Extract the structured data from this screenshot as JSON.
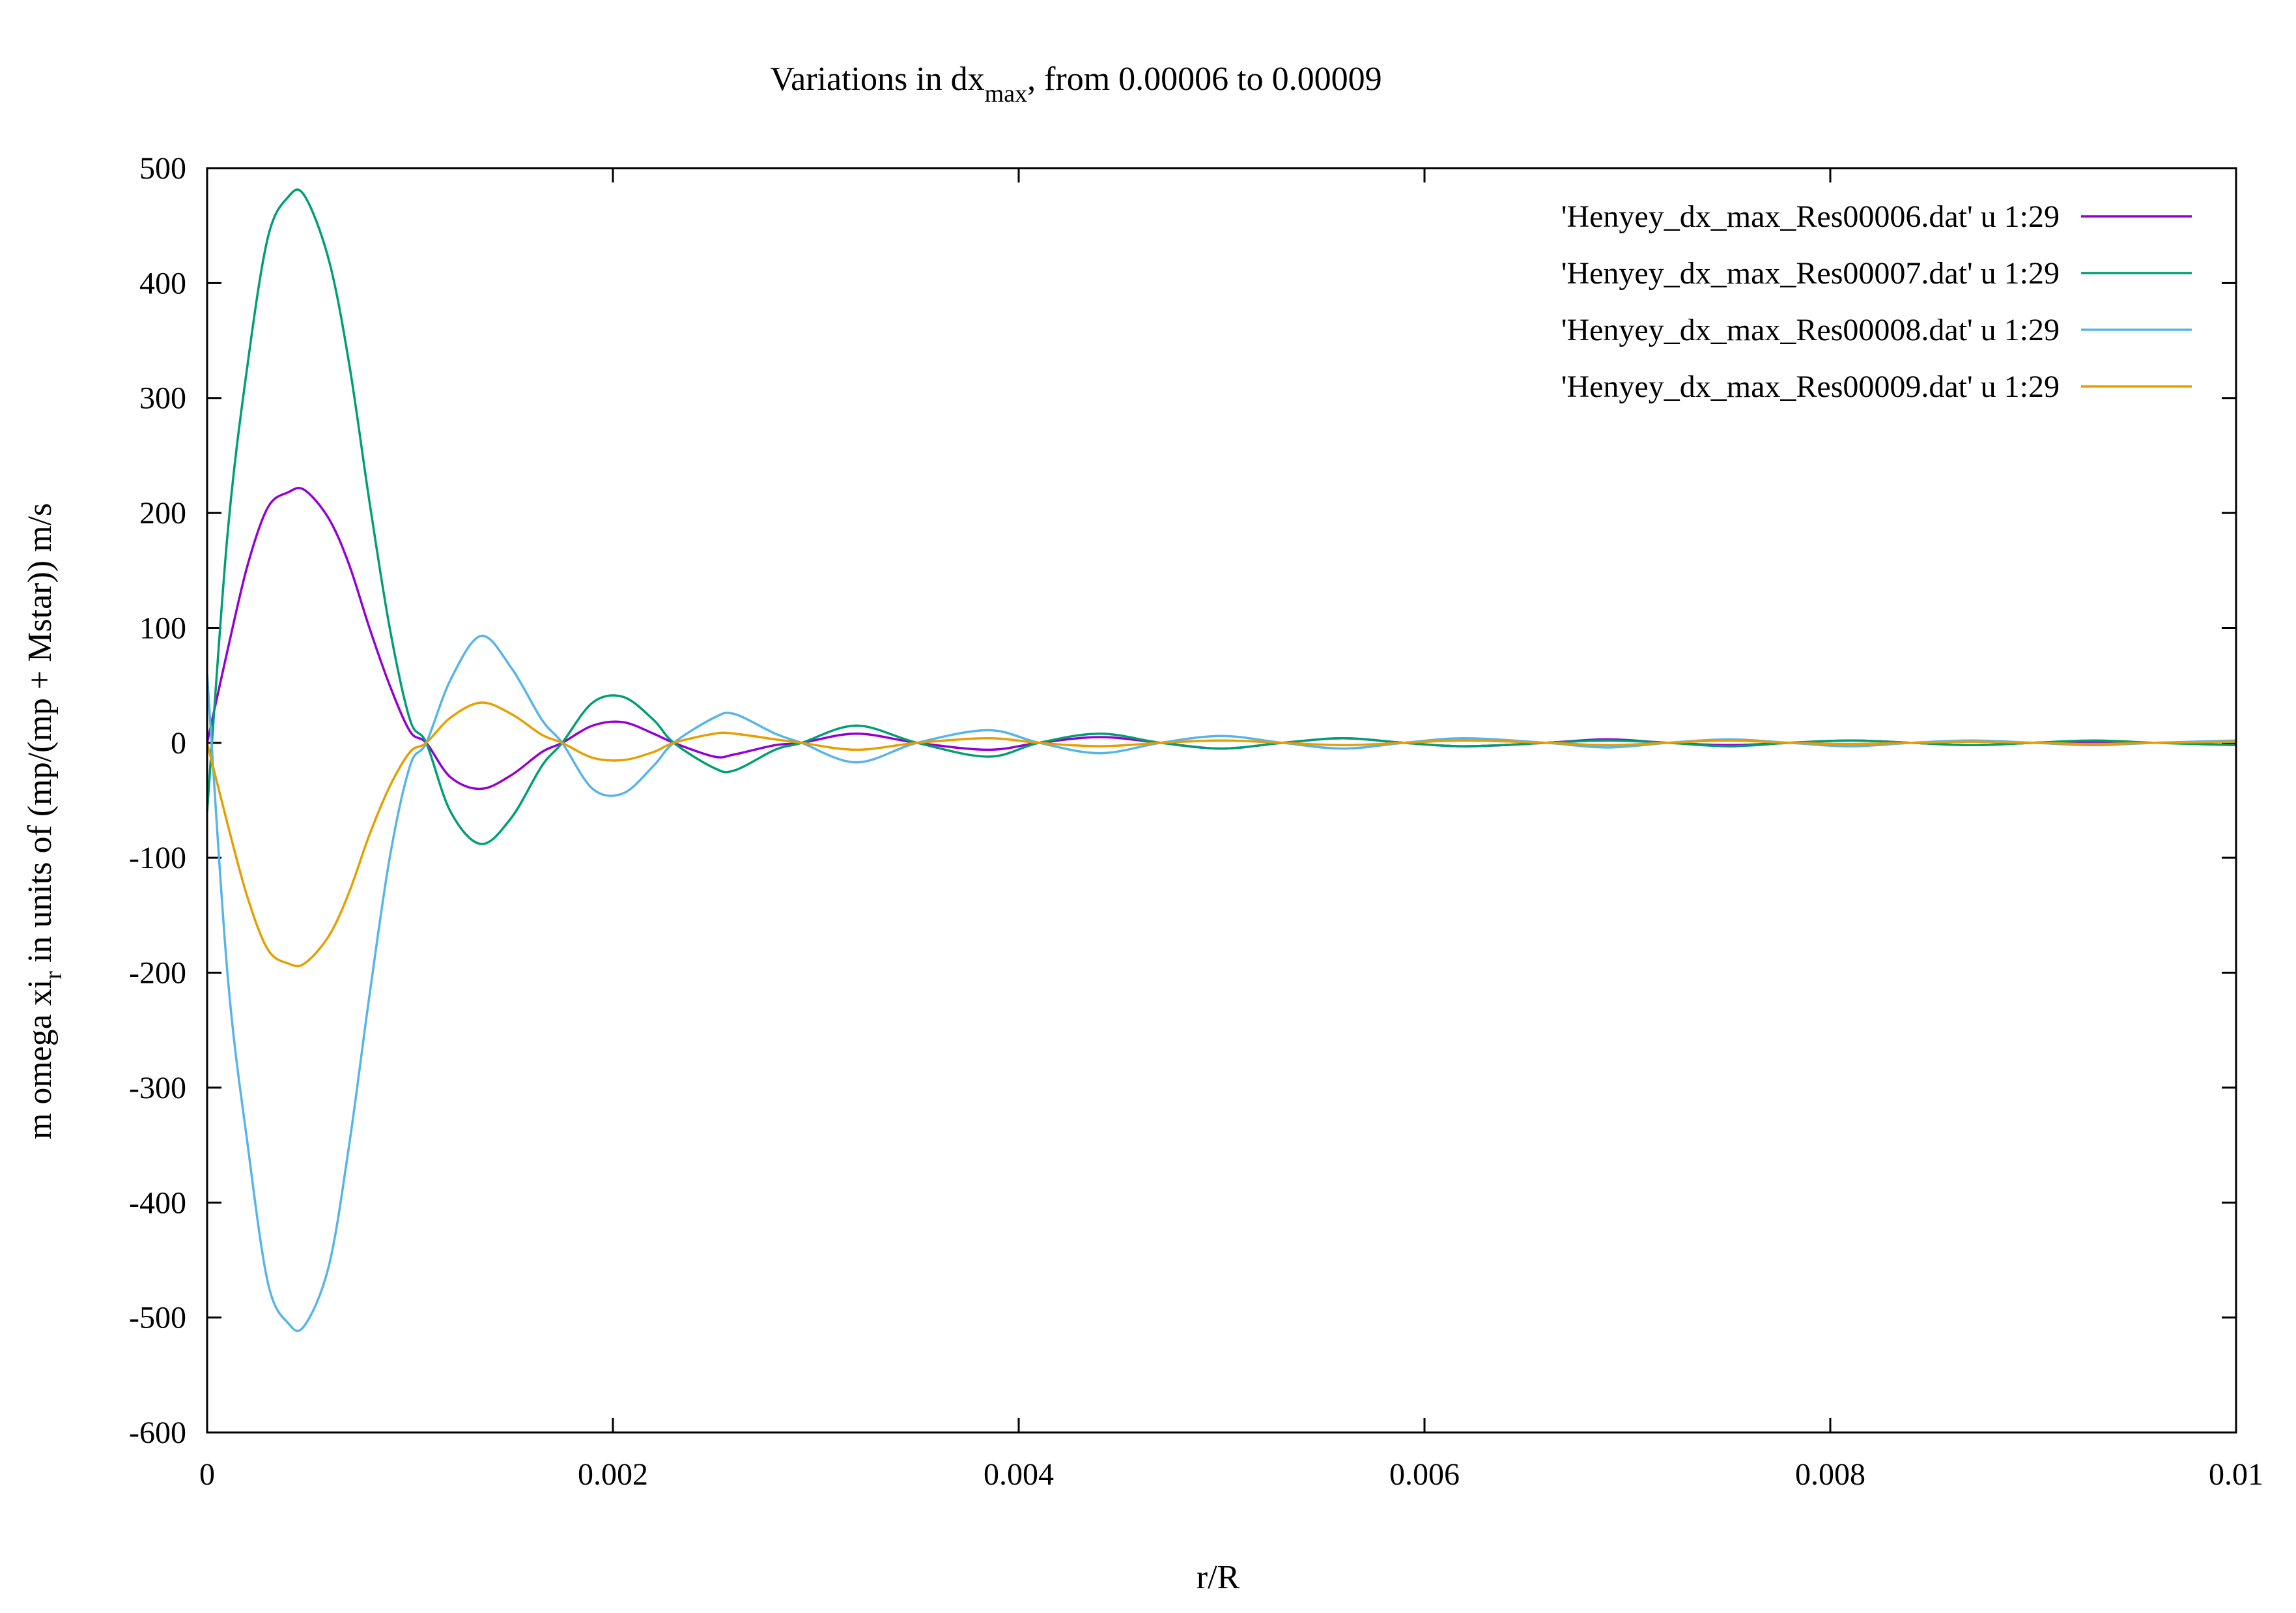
{
  "chart_data": {
    "type": "line",
    "title": {
      "prefix": "Variations in dx",
      "sub": "max",
      "suffix": ", from 0.00006 to 0.00009"
    },
    "xlabel": "r/R",
    "ylabel": {
      "prefix": "m omega xi",
      "sub": "r",
      "suffix": " in units of (mp/(mp + Mstar)) m/s"
    },
    "xlim": [
      0,
      0.01
    ],
    "ylim": [
      -600,
      500
    ],
    "x_ticks": [
      0,
      0.002,
      0.004,
      0.006,
      0.008,
      0.01
    ],
    "x_tick_labels": [
      "0",
      "0.002",
      "0.004",
      "0.006",
      "0.008",
      "0.01"
    ],
    "y_ticks": [
      -600,
      -500,
      -400,
      -300,
      -200,
      -100,
      0,
      100,
      200,
      300,
      400,
      500
    ],
    "y_tick_labels": [
      "-600",
      "-500",
      "-400",
      "-300",
      "-200",
      "-100",
      "0",
      "100",
      "200",
      "300",
      "400",
      "500"
    ],
    "grid": false,
    "legend_position": "top-right",
    "series": [
      {
        "name": "'Henyey_dx_max_Res00006.dat' u 1:29",
        "color": "#9400d3",
        "x": [
          0,
          0.0001,
          0.0002,
          0.0003,
          0.0004,
          0.00048,
          0.0006,
          0.0007,
          0.0008,
          0.0009,
          0.001,
          0.00108,
          0.0012,
          0.00135,
          0.0015,
          0.00165,
          0.00175,
          0.0019,
          0.00205,
          0.0022,
          0.0023,
          0.0025,
          0.0026,
          0.0028,
          0.00293,
          0.0032,
          0.0035,
          0.00385,
          0.0041,
          0.0044,
          0.0047,
          0.005,
          0.0053,
          0.0056,
          0.0059,
          0.0062,
          0.0066,
          0.0069,
          0.0072,
          0.0075,
          0.0078,
          0.0081,
          0.0084,
          0.0087,
          0.009,
          0.0093,
          0.0096,
          0.01
        ],
        "y": [
          0,
          80,
          155,
          205,
          218,
          220,
          195,
          155,
          100,
          50,
          10,
          0,
          -30,
          -40,
          -28,
          -8,
          0,
          15,
          18,
          8,
          0,
          -12,
          -10,
          -2,
          0,
          8,
          0,
          -6,
          0,
          5,
          0,
          -5,
          0,
          4,
          0,
          -3,
          0,
          3,
          0,
          -2,
          0,
          2,
          0,
          -2,
          0,
          1,
          0,
          1
        ]
      },
      {
        "name": "'Henyey_dx_max_Res00007.dat' u 1:29",
        "color": "#009e73",
        "x": [
          0,
          0.0001,
          0.0002,
          0.0003,
          0.0004,
          0.00048,
          0.0006,
          0.0007,
          0.0008,
          0.0009,
          0.001,
          0.00108,
          0.0012,
          0.00135,
          0.0015,
          0.00165,
          0.00175,
          0.0019,
          0.00205,
          0.0022,
          0.0023,
          0.0025,
          0.0026,
          0.0028,
          0.00293,
          0.0032,
          0.0035,
          0.00385,
          0.0041,
          0.0044,
          0.0047,
          0.005,
          0.0053,
          0.0056,
          0.0059,
          0.0062,
          0.0066,
          0.0069,
          0.0072,
          0.0075,
          0.0078,
          0.0081,
          0.0084,
          0.0087,
          0.009,
          0.0093,
          0.0096,
          0.01
        ],
        "y": [
          -60,
          180,
          330,
          440,
          475,
          476,
          420,
          330,
          210,
          100,
          20,
          0,
          -60,
          -88,
          -65,
          -20,
          0,
          35,
          40,
          20,
          0,
          -22,
          -24,
          -6,
          0,
          15,
          0,
          -12,
          0,
          8,
          0,
          -5,
          0,
          4,
          0,
          -3,
          0,
          2,
          0,
          -3,
          0,
          2,
          0,
          -2,
          0,
          2,
          0,
          -2
        ]
      },
      {
        "name": "'Henyey_dx_max_Res00008.dat' u 1:29",
        "color": "#56b4e9",
        "x": [
          0,
          0.0001,
          0.0002,
          0.0003,
          0.0004,
          0.00048,
          0.0006,
          0.0007,
          0.0008,
          0.0009,
          0.001,
          0.00108,
          0.0012,
          0.00135,
          0.0015,
          0.00165,
          0.00175,
          0.0019,
          0.00205,
          0.0022,
          0.0023,
          0.0025,
          0.0026,
          0.0028,
          0.00293,
          0.0032,
          0.0035,
          0.00385,
          0.0041,
          0.0044,
          0.0047,
          0.005,
          0.0053,
          0.0056,
          0.0059,
          0.0062,
          0.0066,
          0.0069,
          0.0072,
          0.0075,
          0.0078,
          0.0081,
          0.0084,
          0.0087,
          0.009,
          0.0093,
          0.0096,
          0.01
        ],
        "y": [
          60,
          -200,
          -350,
          -470,
          -505,
          -507,
          -455,
          -350,
          -220,
          -100,
          -20,
          0,
          55,
          93,
          65,
          20,
          0,
          -40,
          -44,
          -20,
          0,
          22,
          25,
          8,
          0,
          -17,
          0,
          11,
          0,
          -9,
          0,
          6,
          0,
          -5,
          0,
          4,
          0,
          -4,
          0,
          3,
          0,
          -3,
          0,
          2,
          0,
          -2,
          0,
          2
        ]
      },
      {
        "name": "'Henyey_dx_max_Res00009.dat' u 1:29",
        "color": "#e69f00",
        "x": [
          0,
          0.0001,
          0.0002,
          0.0003,
          0.0004,
          0.00048,
          0.0006,
          0.0007,
          0.0008,
          0.0009,
          0.001,
          0.00108,
          0.0012,
          0.00135,
          0.0015,
          0.00165,
          0.00175,
          0.0019,
          0.00205,
          0.0022,
          0.0023,
          0.0025,
          0.0026,
          0.0028,
          0.00293,
          0.0032,
          0.0035,
          0.00385,
          0.0041,
          0.0044,
          0.0047,
          0.005,
          0.0053,
          0.0056,
          0.0059,
          0.0062,
          0.0066,
          0.0069,
          0.0072,
          0.0075,
          0.0078,
          0.0081,
          0.0084,
          0.0087,
          0.009,
          0.0093,
          0.0096,
          0.01
        ],
        "y": [
          0,
          -70,
          -135,
          -180,
          -192,
          -192,
          -168,
          -130,
          -80,
          -38,
          -8,
          0,
          22,
          35,
          25,
          7,
          0,
          -13,
          -15,
          -8,
          0,
          8,
          8,
          3,
          0,
          -6,
          0,
          4,
          0,
          -3,
          0,
          2,
          0,
          -2,
          0,
          2,
          0,
          -2,
          0,
          2,
          0,
          -1,
          0,
          1,
          0,
          -1,
          0,
          1
        ]
      }
    ]
  }
}
